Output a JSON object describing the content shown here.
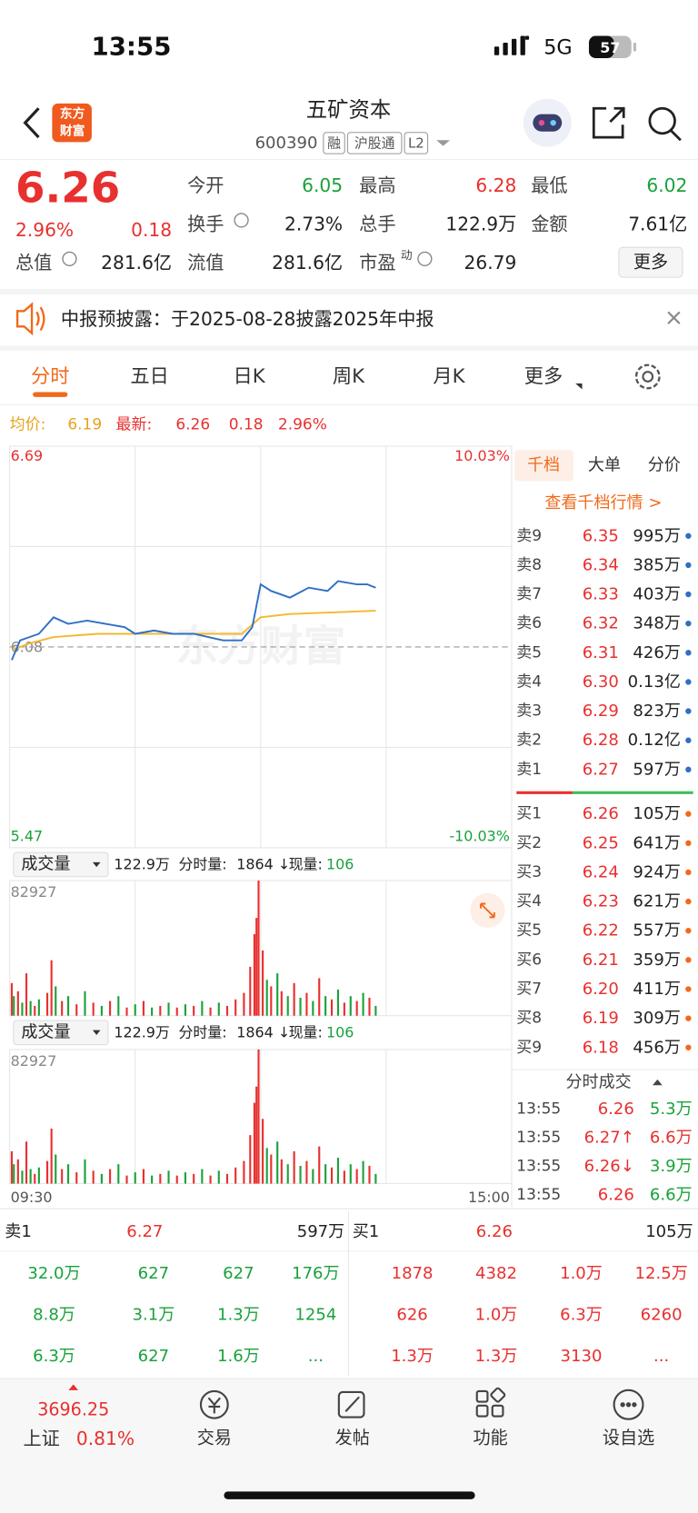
{
  "status_bar": {
    "time": "13:55",
    "network": "5G",
    "battery": "57"
  },
  "header": {
    "title": "五矿资本",
    "code": "600390",
    "badges": [
      "融",
      "沪股通",
      "L2"
    ],
    "logo": [
      "东方",
      "财富"
    ]
  },
  "quote": {
    "price": "6.26",
    "change_pct": "2.96%",
    "change": "0.18",
    "pe_sup": "动",
    "more": "更多",
    "fields": [
      {
        "label": "今开",
        "value": "6.05",
        "color": "#19a23b"
      },
      {
        "label": "最高",
        "value": "6.28",
        "color": "#e8302f"
      },
      {
        "label": "最低",
        "value": "6.02",
        "color": "#19a23b"
      },
      {
        "label": "换手",
        "value": "2.73%",
        "color": "#222222"
      },
      {
        "label": "总手",
        "value": "122.9万",
        "color": "#222222"
      },
      {
        "label": "金额",
        "value": "7.61亿",
        "color": "#222222"
      },
      {
        "label": "总值",
        "value": "281.6亿",
        "color": "#222222"
      },
      {
        "label": "流值",
        "value": "281.6亿",
        "color": "#222222"
      },
      {
        "label": "市盈",
        "value": "26.79",
        "color": "#222222"
      }
    ]
  },
  "notice": {
    "text": "中报预披露：于2025-08-28披露2025年中报"
  },
  "tabs": {
    "items": [
      "分时",
      "五日",
      "日K",
      "周K",
      "月K",
      "更多"
    ],
    "active": 0
  },
  "summary": {
    "avg_label": "均价:",
    "avg": "6.19",
    "latest_label": "最新:",
    "latest": "6.26",
    "change": "0.18",
    "pct": "2.96%"
  },
  "chart": {
    "ylim": [
      5.47,
      6.69
    ],
    "yticks": [
      6.69,
      6.08,
      5.47
    ],
    "y2lim": [
      -10.03,
      10.03
    ],
    "y2ticks": [
      {
        "value": 10.03,
        "label": "10.03%"
      },
      {
        "value": -10.03,
        "label": "-10.03%"
      }
    ],
    "xlim": [
      0,
      240
    ],
    "time_start": "09:30",
    "time_end": "15:00",
    "watermark": "东方财富",
    "price": {
      "color": "#2f6fc4",
      "x": [
        1,
        5,
        14,
        21,
        28,
        37,
        46,
        55,
        60,
        69,
        78,
        88,
        95,
        102,
        111,
        116,
        120,
        125,
        134,
        143,
        152,
        157,
        166,
        171,
        175
      ],
      "values": [
        6.04,
        6.1,
        6.12,
        6.17,
        6.15,
        6.16,
        6.15,
        6.14,
        6.12,
        6.13,
        6.12,
        6.12,
        6.11,
        6.1,
        6.1,
        6.14,
        6.27,
        6.25,
        6.23,
        6.26,
        6.25,
        6.28,
        6.27,
        6.27,
        6.26
      ]
    },
    "avg": {
      "color": "#f5b731",
      "x": [
        1,
        9,
        21,
        42,
        88,
        111,
        120,
        134,
        175
      ],
      "values": [
        6.07,
        6.09,
        6.11,
        6.12,
        6.12,
        6.12,
        6.17,
        6.18,
        6.19
      ]
    },
    "volume": {
      "ylim": [
        0,
        82927
      ],
      "yticks": [
        82927
      ],
      "up_color": "#e8302f",
      "down_color": "#19a23b",
      "x": [
        1,
        2,
        4,
        6,
        8,
        10,
        12,
        14,
        18,
        20,
        22,
        25,
        28,
        32,
        36,
        40,
        44,
        48,
        52,
        56,
        60,
        64,
        68,
        72,
        76,
        80,
        84,
        88,
        92,
        96,
        100,
        104,
        108,
        112,
        115,
        117,
        118,
        119,
        121,
        123,
        125,
        128,
        130,
        133,
        136,
        139,
        142,
        145,
        148,
        151,
        154,
        157,
        160,
        163,
        166,
        169,
        172,
        175
      ],
      "values": [
        20000,
        12000,
        15000,
        8000,
        26000,
        9000,
        6000,
        10000,
        14000,
        34000,
        18000,
        9000,
        12000,
        7000,
        15000,
        8000,
        6000,
        9000,
        12000,
        5000,
        7000,
        9000,
        5000,
        6000,
        8000,
        5000,
        7000,
        6000,
        9000,
        5000,
        8000,
        6000,
        10000,
        14000,
        30000,
        50000,
        60000,
        82927,
        40000,
        22000,
        18000,
        26000,
        15000,
        12000,
        20000,
        11000,
        14000,
        9000,
        23000,
        12000,
        10000,
        16000,
        8000,
        12000,
        9000,
        14000,
        11000,
        6000
      ],
      "direction": [
        "up",
        "down",
        "up",
        "down",
        "up",
        "down",
        "up",
        "down",
        "up",
        "up",
        "down",
        "up",
        "down",
        "up",
        "down",
        "up",
        "down",
        "up",
        "down",
        "up",
        "down",
        "up",
        "down",
        "up",
        "down",
        "up",
        "down",
        "up",
        "down",
        "up",
        "down",
        "up",
        "up",
        "up",
        "up",
        "up",
        "up",
        "up",
        "up",
        "down",
        "up",
        "down",
        "up",
        "down",
        "up",
        "down",
        "up",
        "down",
        "up",
        "down",
        "up",
        "down",
        "up",
        "down",
        "up",
        "down",
        "up",
        "down"
      ]
    },
    "volume_header": {
      "selector": "成交量",
      "total": "122.9万",
      "fen_label": "分时量:",
      "fen_value": "1864 ↓",
      "now_label": "现量:",
      "now_value": "106"
    }
  },
  "order_book": {
    "tabs": [
      "千档",
      "大单",
      "分价"
    ],
    "link": "查看千档行情 >",
    "asks": [
      {
        "label": "卖9",
        "price": "6.35",
        "vol": "995万"
      },
      {
        "label": "卖8",
        "price": "6.34",
        "vol": "385万"
      },
      {
        "label": "卖7",
        "price": "6.33",
        "vol": "403万"
      },
      {
        "label": "卖6",
        "price": "6.32",
        "vol": "348万"
      },
      {
        "label": "卖5",
        "price": "6.31",
        "vol": "426万"
      },
      {
        "label": "卖4",
        "price": "6.30",
        "vol": "0.13亿"
      },
      {
        "label": "卖3",
        "price": "6.29",
        "vol": "823万"
      },
      {
        "label": "卖2",
        "price": "6.28",
        "vol": "0.12亿"
      },
      {
        "label": "卖1",
        "price": "6.27",
        "vol": "597万"
      }
    ],
    "bids": [
      {
        "label": "买1",
        "price": "6.26",
        "vol": "105万"
      },
      {
        "label": "买2",
        "price": "6.25",
        "vol": "641万"
      },
      {
        "label": "买3",
        "price": "6.24",
        "vol": "924万"
      },
      {
        "label": "买4",
        "price": "6.23",
        "vol": "621万"
      },
      {
        "label": "买5",
        "price": "6.22",
        "vol": "557万"
      },
      {
        "label": "买6",
        "price": "6.21",
        "vol": "359万"
      },
      {
        "label": "买7",
        "price": "6.20",
        "vol": "411万"
      },
      {
        "label": "买8",
        "price": "6.19",
        "vol": "309万"
      },
      {
        "label": "买9",
        "price": "6.18",
        "vol": "456万"
      }
    ],
    "trades_title": "分时成交",
    "trades": [
      {
        "time": "13:55",
        "price": "6.26",
        "vol": "5.3万",
        "color": "#19a23b"
      },
      {
        "time": "13:55",
        "price": "6.27↑",
        "vol": "6.6万",
        "color": "#e8302f"
      },
      {
        "time": "13:55",
        "price": "6.26↓",
        "vol": "3.9万",
        "color": "#19a23b"
      },
      {
        "time": "13:55",
        "price": "6.26",
        "vol": "6.6万",
        "color": "#19a23b"
      }
    ]
  },
  "bottom": {
    "left": {
      "label": "卖1",
      "price": "6.27",
      "vol": "597万",
      "cells": [
        [
          "32.0万",
          "627",
          "627",
          "176万"
        ],
        [
          "8.8万",
          "3.1万",
          "1.3万",
          "1254"
        ],
        [
          "6.3万",
          "627",
          "1.6万",
          "..."
        ]
      ]
    },
    "right": {
      "label": "买1",
      "price": "6.26",
      "vol": "105万",
      "cells": [
        [
          "1878",
          "4382",
          "1.0万",
          "12.5万"
        ],
        [
          "626",
          "1.0万",
          "6.3万",
          "6260"
        ],
        [
          "1.3万",
          "1.3万",
          "3130",
          "..."
        ]
      ]
    }
  },
  "nav": {
    "index": "3696.25",
    "index_name": "上证",
    "index_change": "0.81%",
    "items": [
      "交易",
      "发帖",
      "功能",
      "设自选"
    ]
  }
}
